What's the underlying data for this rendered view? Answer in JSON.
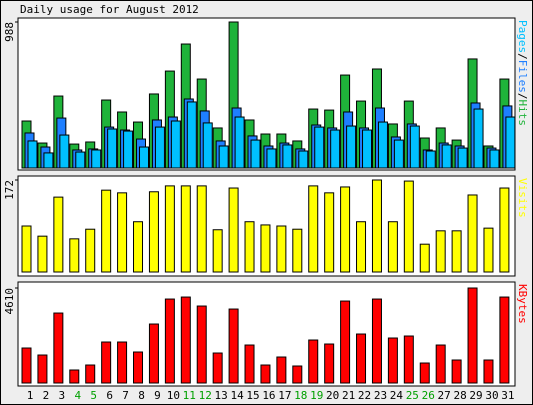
{
  "title": "Daily usage for August 2012",
  "legend_separator": "/",
  "chart_data": [
    {
      "type": "bar",
      "ylim": [
        0,
        988
      ],
      "yticks": [
        988
      ],
      "series": [
        {
          "name": "Hits",
          "color": "#1fb33a",
          "values": [
            318,
            169,
            487,
            162,
            176,
            460,
            379,
            311,
            501,
            656,
            839,
            602,
            271,
            988,
            325,
            230,
            230,
            183,
            399,
            392,
            629,
            453,
            670,
            298,
            453,
            203,
            271,
            189,
            738,
            149,
            602
          ]
        },
        {
          "name": "Files",
          "color": "#1e7fff",
          "values": [
            237,
            142,
            338,
            122,
            129,
            277,
            257,
            196,
            325,
            345,
            467,
            386,
            183,
            406,
            217,
            149,
            169,
            129,
            291,
            271,
            379,
            271,
            406,
            210,
            298,
            122,
            169,
            149,
            440,
            135,
            420
          ]
        },
        {
          "name": "Pages",
          "color": "#00c0ff",
          "values": [
            183,
            102,
            223,
            108,
            122,
            264,
            250,
            142,
            277,
            318,
            447,
            305,
            149,
            345,
            189,
            129,
            156,
            115,
            277,
            257,
            284,
            257,
            311,
            189,
            284,
            115,
            156,
            135,
            399,
            122,
            345
          ]
        }
      ]
    },
    {
      "type": "bar",
      "ylim": [
        0,
        172
      ],
      "yticks": [
        172
      ],
      "series": [
        {
          "name": "Visits",
          "color": "#ffff00",
          "values": [
            86,
            67,
            140,
            62,
            80,
            153,
            148,
            94,
            150,
            161,
            161,
            161,
            79,
            157,
            94,
            88,
            86,
            80,
            161,
            148,
            159,
            94,
            172,
            94,
            170,
            52,
            77,
            77,
            144,
            82,
            157
          ]
        }
      ]
    },
    {
      "type": "bar",
      "ylim": [
        0,
        4610
      ],
      "yticks": [
        4610
      ],
      "categories": [
        "1",
        "2",
        "3",
        "4",
        "5",
        "6",
        "7",
        "8",
        "9",
        "10",
        "11",
        "12",
        "13",
        "14",
        "15",
        "16",
        "17",
        "18",
        "19",
        "20",
        "21",
        "22",
        "23",
        "24",
        "25",
        "26",
        "27",
        "28",
        "29",
        "30",
        "31"
      ],
      "label_colors": [
        "#000",
        "#000",
        "#000",
        "#00a000",
        "#00a000",
        "#000",
        "#000",
        "#000",
        "#000",
        "#000",
        "#00a000",
        "#00a000",
        "#000",
        "#000",
        "#000",
        "#000",
        "#000",
        "#00a000",
        "#00a000",
        "#000",
        "#000",
        "#000",
        "#000",
        "#000",
        "#00a000",
        "#00a000",
        "#000",
        "#000",
        "#000",
        "#000",
        "#000"
      ],
      "series": [
        {
          "name": "KBytes",
          "color": "#ff0000",
          "values": [
            1698,
            1358,
            3395,
            631,
            873,
            1989,
            1989,
            1504,
            2862,
            4074,
            4171,
            3735,
            1455,
            3589,
            1843,
            873,
            1261,
            825,
            2086,
            1892,
            3977,
            2377,
            4074,
            2183,
            2280,
            970,
            1843,
            1116,
            4610,
            1116,
            4171
          ]
        }
      ]
    }
  ]
}
